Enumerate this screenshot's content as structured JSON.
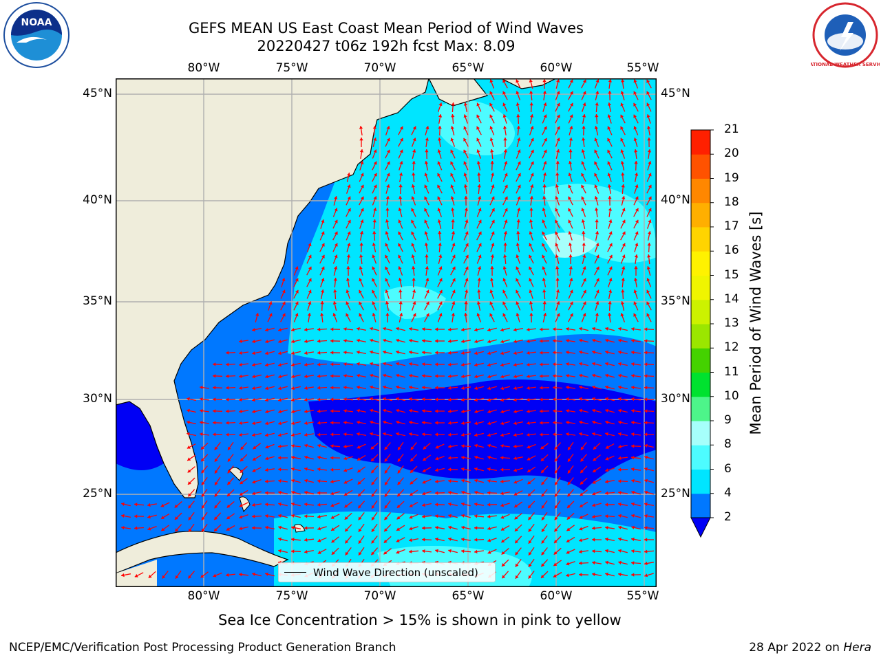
{
  "title": {
    "line1": "GEFS MEAN US East Coast Mean Period of Wind Waves",
    "line2": "20220427 t06z 192h fcst   Max: 8.09"
  },
  "map": {
    "lon_ticks_top": [
      "80°W",
      "75°W",
      "70°W",
      "65°W",
      "60°W",
      "55°W"
    ],
    "lon_ticks_bottom": [
      "80°W",
      "75°W",
      "70°W",
      "65°W",
      "60°W",
      "55°W"
    ],
    "lat_ticks_left": [
      "45°N",
      "40°N",
      "35°N",
      "30°N",
      "25°N"
    ],
    "lat_ticks_right": [
      "45°N",
      "40°N",
      "35°N",
      "30°N",
      "25°N"
    ],
    "legend_label": "Wind Wave Direction (unscaled)",
    "arrow_color": "#ff0000",
    "land_color": "#efeddb"
  },
  "colorbar": {
    "label": "Mean Period of Wind Waves [s]",
    "ticks": [
      "2",
      "4",
      "6",
      "8",
      "9",
      "10",
      "11",
      "12",
      "13",
      "14",
      "15",
      "16",
      "17",
      "18",
      "19",
      "20",
      "21"
    ],
    "colors": [
      "#0078ff",
      "#00e5ff",
      "#4dfcff",
      "#a6fffb",
      "#4df58a",
      "#00e22f",
      "#44d200",
      "#9be600",
      "#ccf200",
      "#f0f500",
      "#fff200",
      "#ffd400",
      "#ffaf00",
      "#ff8700",
      "#ff5200",
      "#ff2000"
    ],
    "under_color": "#0000f5"
  },
  "notes": {
    "sea_ice": "Sea Ice Concentration > 15% is shown in pink to yellow",
    "producer": "NCEP/EMC/Verification Post Processing Product Generation Branch",
    "date": "28 Apr 2022 on ",
    "machine": "Hera"
  },
  "logos": {
    "noaa_text": "NOAA",
    "nws_text": "NATIONAL WEATHER SERVICE"
  }
}
